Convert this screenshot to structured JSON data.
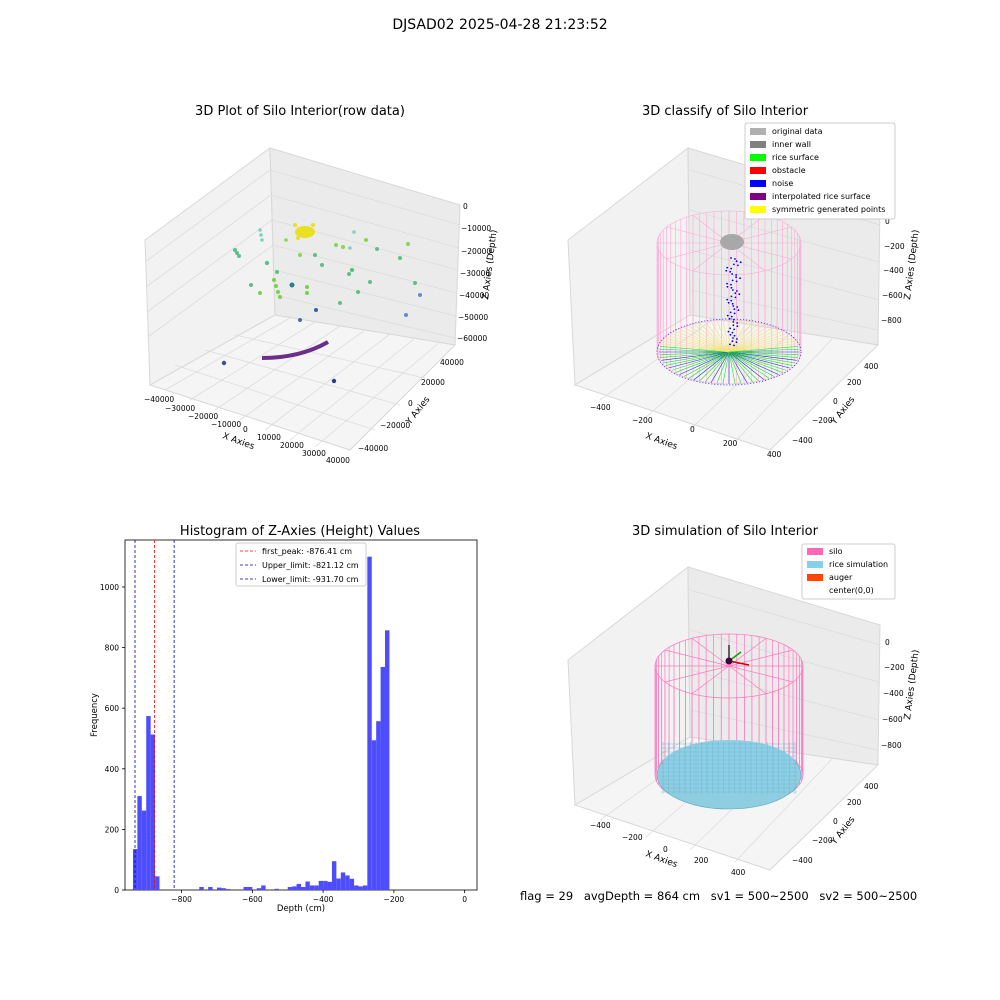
{
  "suptitle": "DJSAD02 2025-04-28 21:23:52",
  "footer": {
    "flag": "flag = 29",
    "avg": "avgDepth = 864 cm",
    "sv1": "sv1 = 500~2500",
    "sv2": "sv2 = 500~2500"
  },
  "colors": {
    "silo": "#ff69b4",
    "rice_simulation": "#87ceeb",
    "auger": "#ff4500",
    "rice_surface": "#00ff00",
    "noise": "#0000ff",
    "obstacle": "#ff0000",
    "original": "#b0b0b0",
    "inner_wall": "#808080",
    "interpolated": "#800080",
    "symmetric": "#ffff00",
    "hist_bar": "#4d4dff"
  },
  "chart_data": [
    {
      "type": "scatter",
      "subtype": "3d",
      "title": "3D Plot of Silo Interior(row data)",
      "xlabel": "X Axies",
      "ylabel": "Y Axies",
      "zlabel": "Z Axies (Depth)",
      "xticks": [
        "−40000",
        "−30000",
        "−20000",
        "−10000",
        "0",
        "10000",
        "20000",
        "30000",
        "40000"
      ],
      "yticks": [
        "−40000",
        "−20000",
        "0",
        "20000",
        "40000"
      ],
      "zticks": [
        "0",
        "−10000",
        "−20000",
        "−30000",
        "−40000",
        "−50000",
        "−60000"
      ],
      "xlim": [
        -40000,
        40000
      ],
      "ylim": [
        -40000,
        40000
      ],
      "zlim": [
        -60000,
        0
      ]
    },
    {
      "type": "scatter",
      "subtype": "3d",
      "title": "3D classify of Silo Interior",
      "xlabel": "X Axies",
      "ylabel": "Y Axies",
      "zlabel": "Z Axies (Depth)",
      "xticks": [
        "−400",
        "−200",
        "0",
        "200",
        "400"
      ],
      "yticks": [
        "−400",
        "−200",
        "0",
        "200",
        "400"
      ],
      "zticks": [
        "0",
        "−200",
        "−400",
        "−600",
        "−800"
      ],
      "legend": [
        "original data",
        "inner wall",
        "rice surface",
        "obstacle",
        "noise",
        "interpolated rice surface",
        "symmetric generated points"
      ],
      "legend_position": "top-right"
    },
    {
      "type": "bar",
      "subtype": "histogram",
      "title": "Histogram of Z-Axies (Height) Values",
      "xlabel": "Depth (cm)",
      "ylabel": "Frequency",
      "xticks": [
        "−800",
        "−600",
        "−400",
        "−200",
        "0"
      ],
      "yticks": [
        "0",
        "200",
        "400",
        "600",
        "800",
        "1000"
      ],
      "xlim": [
        -960,
        35
      ],
      "ylim": [
        0,
        1155
      ],
      "bin_width": 12.5,
      "bin_start": -937.5,
      "values": [
        135,
        310,
        262,
        574,
        513,
        45,
        0,
        0,
        0,
        0,
        0,
        0,
        0,
        0,
        0,
        10,
        0,
        10,
        0,
        8,
        6,
        3,
        0,
        0,
        0,
        10,
        10,
        0,
        6,
        15,
        0,
        0,
        4,
        0,
        0,
        10,
        12,
        20,
        10,
        28,
        15,
        15,
        30,
        30,
        27,
        95,
        38,
        58,
        48,
        37,
        15,
        12,
        15,
        1100,
        494,
        557,
        736,
        857
      ],
      "vlines": [
        {
          "label": "first_peak: -876.41 cm",
          "value": -876.41,
          "color": "#ff0000"
        },
        {
          "label": "Upper_limit: -821.12 cm",
          "value": -821.12,
          "color": "#0000cc"
        },
        {
          "label": "Lower_limit: -931.70 cm",
          "value": -931.7,
          "color": "#0000cc"
        }
      ],
      "legend_position": "top-center"
    },
    {
      "type": "scatter",
      "subtype": "3d",
      "title": "3D simulation of Silo Interior",
      "xlabel": "X Axies",
      "ylabel": "Y Axies",
      "zlabel": "Z Axies (Depth)",
      "xticks": [
        "−400",
        "−200",
        "0",
        "200",
        "400"
      ],
      "yticks": [
        "−400",
        "−200",
        "0",
        "200",
        "400"
      ],
      "zticks": [
        "0",
        "−200",
        "−400",
        "−600",
        "−800"
      ],
      "legend": [
        "silo",
        "rice simulation",
        "auger",
        "center(0,0)"
      ],
      "legend_position": "top-right"
    }
  ]
}
